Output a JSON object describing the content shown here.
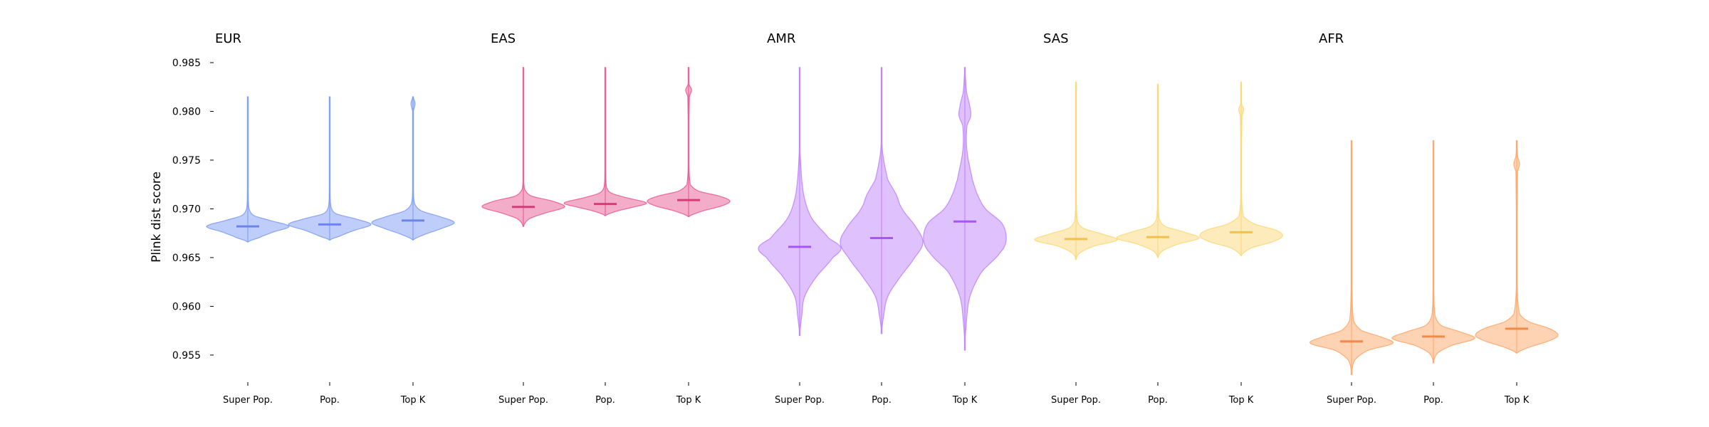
{
  "chart_data": {
    "type": "violin",
    "ylabel": "Plink dist score",
    "ylim": [
      0.952,
      0.985
    ],
    "yticks": [
      {
        "value": 0.955,
        "label": "0.955"
      },
      {
        "value": 0.96,
        "label": "0.960"
      },
      {
        "value": 0.965,
        "label": "0.965"
      },
      {
        "value": 0.97,
        "label": "0.970"
      },
      {
        "value": 0.975,
        "label": "0.975"
      },
      {
        "value": 0.98,
        "label": "0.980"
      },
      {
        "value": 0.985,
        "label": "0.985"
      }
    ],
    "categories": [
      "Super Pop.",
      "Pop.",
      "Top K"
    ],
    "grid": false,
    "panels": [
      {
        "title": "EUR",
        "color": "#7f9cf5",
        "median_color": "#6d84e8",
        "violins": [
          {
            "category": "Super Pop.",
            "min": 0.9666,
            "max": 0.9815,
            "median": 0.9682,
            "profile": [
              [
                0.9666,
                0.0
              ],
              [
                0.967,
                0.25
              ],
              [
                0.9676,
                0.6
              ],
              [
                0.9682,
                1.0
              ],
              [
                0.9688,
                0.55
              ],
              [
                0.9693,
                0.15
              ],
              [
                0.97,
                0.03
              ],
              [
                0.972,
                0.01
              ],
              [
                0.9815,
                0.005
              ]
            ]
          },
          {
            "category": "Pop.",
            "min": 0.9668,
            "max": 0.9815,
            "median": 0.9684,
            "profile": [
              [
                0.9668,
                0.0
              ],
              [
                0.9672,
                0.25
              ],
              [
                0.9678,
                0.6
              ],
              [
                0.9684,
                1.0
              ],
              [
                0.969,
                0.6
              ],
              [
                0.9695,
                0.15
              ],
              [
                0.9702,
                0.03
              ],
              [
                0.972,
                0.01
              ],
              [
                0.9815,
                0.005
              ]
            ]
          },
          {
            "category": "Top K",
            "min": 0.9668,
            "max": 0.9815,
            "median": 0.9688,
            "profile": [
              [
                0.9668,
                0.0
              ],
              [
                0.9674,
                0.3
              ],
              [
                0.968,
                0.7
              ],
              [
                0.9686,
                1.0
              ],
              [
                0.9692,
                0.65
              ],
              [
                0.9698,
                0.2
              ],
              [
                0.9705,
                0.04
              ],
              [
                0.972,
                0.01
              ],
              [
                0.98,
                0.01
              ],
              [
                0.9808,
                0.05
              ],
              [
                0.9815,
                0.005
              ]
            ]
          }
        ]
      },
      {
        "title": "EAS",
        "color": "#ea5c93",
        "median_color": "#d63c7a",
        "violins": [
          {
            "category": "Super Pop.",
            "min": 0.9682,
            "max": 0.9845,
            "median": 0.9702,
            "profile": [
              [
                0.9682,
                0.0
              ],
              [
                0.969,
                0.15
              ],
              [
                0.9696,
                0.55
              ],
              [
                0.9702,
                1.0
              ],
              [
                0.9708,
                0.7
              ],
              [
                0.9713,
                0.2
              ],
              [
                0.972,
                0.03
              ],
              [
                0.974,
                0.01
              ],
              [
                0.9845,
                0.005
              ]
            ]
          },
          {
            "category": "Pop.",
            "min": 0.9693,
            "max": 0.9845,
            "median": 0.9705,
            "profile": [
              [
                0.9693,
                0.0
              ],
              [
                0.9698,
                0.3
              ],
              [
                0.9702,
                0.7
              ],
              [
                0.9706,
                1.0
              ],
              [
                0.9711,
                0.55
              ],
              [
                0.9716,
                0.15
              ],
              [
                0.9722,
                0.03
              ],
              [
                0.974,
                0.01
              ],
              [
                0.9845,
                0.005
              ]
            ]
          },
          {
            "category": "Top K",
            "min": 0.9692,
            "max": 0.9845,
            "median": 0.9709,
            "profile": [
              [
                0.9692,
                0.0
              ],
              [
                0.9698,
                0.35
              ],
              [
                0.9703,
                0.8
              ],
              [
                0.9708,
                1.0
              ],
              [
                0.9713,
                0.75
              ],
              [
                0.9718,
                0.25
              ],
              [
                0.9725,
                0.04
              ],
              [
                0.976,
                0.01
              ],
              [
                0.9815,
                0.02
              ],
              [
                0.9822,
                0.07
              ],
              [
                0.9828,
                0.01
              ],
              [
                0.9845,
                0.005
              ]
            ]
          }
        ]
      },
      {
        "title": "AMR",
        "color": "#c084fc",
        "median_color": "#a855f7",
        "violins": [
          {
            "category": "Super Pop.",
            "min": 0.957,
            "max": 0.9845,
            "median": 0.9661,
            "profile": [
              [
                0.957,
                0.0
              ],
              [
                0.959,
                0.05
              ],
              [
                0.961,
                0.12
              ],
              [
                0.963,
                0.4
              ],
              [
                0.965,
                0.8
              ],
              [
                0.966,
                1.0
              ],
              [
                0.967,
                0.7
              ],
              [
                0.969,
                0.3
              ],
              [
                0.971,
                0.12
              ],
              [
                0.973,
                0.05
              ],
              [
                0.976,
                0.01
              ],
              [
                0.9845,
                0.005
              ]
            ]
          },
          {
            "category": "Pop.",
            "min": 0.9572,
            "max": 0.9845,
            "median": 0.967,
            "profile": [
              [
                0.9572,
                0.0
              ],
              [
                0.959,
                0.05
              ],
              [
                0.961,
                0.15
              ],
              [
                0.963,
                0.45
              ],
              [
                0.965,
                0.8
              ],
              [
                0.9665,
                1.0
              ],
              [
                0.968,
                0.85
              ],
              [
                0.97,
                0.5
              ],
              [
                0.9715,
                0.35
              ],
              [
                0.973,
                0.15
              ],
              [
                0.976,
                0.02
              ],
              [
                0.98,
                0.01
              ],
              [
                0.9845,
                0.005
              ]
            ]
          },
          {
            "category": "Top K",
            "min": 0.9555,
            "max": 0.9845,
            "median": 0.9687,
            "profile": [
              [
                0.9555,
                0.0
              ],
              [
                0.958,
                0.03
              ],
              [
                0.961,
                0.12
              ],
              [
                0.9635,
                0.4
              ],
              [
                0.9655,
                0.85
              ],
              [
                0.9668,
                1.0
              ],
              [
                0.9685,
                0.9
              ],
              [
                0.97,
                0.5
              ],
              [
                0.9715,
                0.3
              ],
              [
                0.973,
                0.18
              ],
              [
                0.976,
                0.05
              ],
              [
                0.9785,
                0.05
              ],
              [
                0.9795,
                0.14
              ],
              [
                0.9805,
                0.12
              ],
              [
                0.982,
                0.04
              ],
              [
                0.9845,
                0.005
              ]
            ]
          }
        ]
      },
      {
        "title": "SAS",
        "color": "#fcd877",
        "median_color": "#f2c04d",
        "violins": [
          {
            "category": "Super Pop.",
            "min": 0.9648,
            "max": 0.983,
            "median": 0.9669,
            "profile": [
              [
                0.9648,
                0.0
              ],
              [
                0.9655,
                0.1
              ],
              [
                0.9662,
                0.45
              ],
              [
                0.9668,
                1.0
              ],
              [
                0.9674,
                0.65
              ],
              [
                0.968,
                0.18
              ],
              [
                0.9688,
                0.03
              ],
              [
                0.972,
                0.01
              ],
              [
                0.983,
                0.005
              ]
            ]
          },
          {
            "category": "Pop.",
            "min": 0.965,
            "max": 0.9828,
            "median": 0.9671,
            "profile": [
              [
                0.965,
                0.0
              ],
              [
                0.9657,
                0.12
              ],
              [
                0.9664,
                0.5
              ],
              [
                0.967,
                1.0
              ],
              [
                0.9676,
                0.65
              ],
              [
                0.9682,
                0.18
              ],
              [
                0.969,
                0.03
              ],
              [
                0.972,
                0.01
              ],
              [
                0.9828,
                0.005
              ]
            ]
          },
          {
            "category": "Top K",
            "min": 0.9652,
            "max": 0.983,
            "median": 0.9676,
            "profile": [
              [
                0.9652,
                0.0
              ],
              [
                0.966,
                0.25
              ],
              [
                0.9666,
                0.75
              ],
              [
                0.9672,
                1.0
              ],
              [
                0.9678,
                0.85
              ],
              [
                0.9684,
                0.35
              ],
              [
                0.9692,
                0.06
              ],
              [
                0.972,
                0.01
              ],
              [
                0.9795,
                0.02
              ],
              [
                0.9802,
                0.06
              ],
              [
                0.9808,
                0.01
              ],
              [
                0.983,
                0.005
              ]
            ]
          }
        ]
      },
      {
        "title": "AFR",
        "color": "#fda769",
        "median_color": "#f28a4a",
        "violins": [
          {
            "category": "Super Pop.",
            "min": 0.953,
            "max": 0.977,
            "median": 0.9564,
            "profile": [
              [
                0.953,
                0.0
              ],
              [
                0.9545,
                0.08
              ],
              [
                0.9555,
                0.4
              ],
              [
                0.9562,
                1.0
              ],
              [
                0.9568,
                0.75
              ],
              [
                0.9575,
                0.25
              ],
              [
                0.9585,
                0.05
              ],
              [
                0.962,
                0.01
              ],
              [
                0.977,
                0.005
              ]
            ]
          },
          {
            "category": "Pop.",
            "min": 0.9542,
            "max": 0.977,
            "median": 0.9569,
            "profile": [
              [
                0.9542,
                0.0
              ],
              [
                0.9552,
                0.1
              ],
              [
                0.956,
                0.45
              ],
              [
                0.9567,
                1.0
              ],
              [
                0.9573,
                0.7
              ],
              [
                0.958,
                0.2
              ],
              [
                0.959,
                0.04
              ],
              [
                0.962,
                0.01
              ],
              [
                0.977,
                0.005
              ]
            ]
          },
          {
            "category": "Top K",
            "min": 0.9552,
            "max": 0.977,
            "median": 0.9577,
            "profile": [
              [
                0.9552,
                0.0
              ],
              [
                0.9558,
                0.3
              ],
              [
                0.9564,
                0.75
              ],
              [
                0.957,
                1.0
              ],
              [
                0.9577,
                0.8
              ],
              [
                0.9584,
                0.3
              ],
              [
                0.9592,
                0.07
              ],
              [
                0.962,
                0.01
              ],
              [
                0.9738,
                0.02
              ],
              [
                0.9746,
                0.07
              ],
              [
                0.9754,
                0.02
              ],
              [
                0.977,
                0.005
              ]
            ]
          }
        ]
      }
    ]
  }
}
